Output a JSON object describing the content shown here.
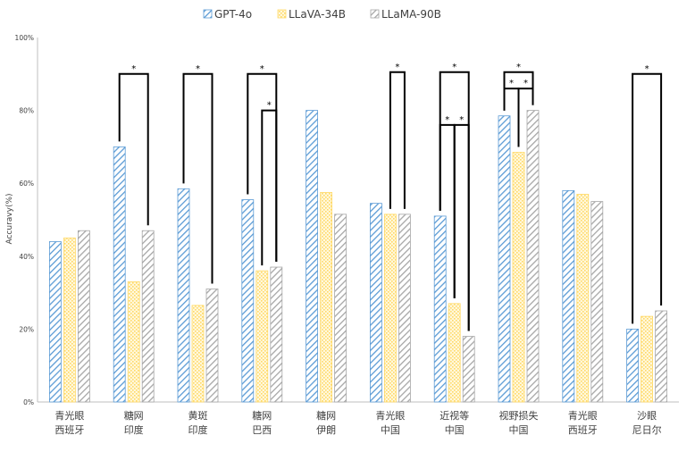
{
  "chart_data": {
    "type": "bar",
    "title": "",
    "xlabel": "",
    "ylabel": "Accuravy(%)",
    "ylim": [
      0,
      100
    ],
    "yticks": [
      "0%",
      "20%",
      "40%",
      "60%",
      "80%",
      "100%"
    ],
    "legend_position": "top",
    "grid": false,
    "categories": [
      [
        "青光眼",
        "西班牙"
      ],
      [
        "糖网",
        "印度"
      ],
      [
        "黄斑",
        "印度"
      ],
      [
        "糖网",
        "巴西"
      ],
      [
        "糖网",
        "伊朗"
      ],
      [
        "青光眼",
        "中国"
      ],
      [
        "近视等",
        "中国"
      ],
      [
        "视野损失",
        "中国"
      ],
      [
        "青光眼",
        "西班牙"
      ],
      [
        "沙眼",
        "尼日尔"
      ]
    ],
    "series": [
      {
        "name": "GPT-4o",
        "color": "#5b9bd5",
        "pattern": "diagonal-hatch",
        "values": [
          44,
          70,
          58.5,
          55.5,
          80,
          54.5,
          51,
          78.5,
          58,
          20
        ]
      },
      {
        "name": "LLaVA-34B",
        "color": "#ffd966",
        "pattern": "dots",
        "values": [
          45,
          33,
          26.5,
          36,
          57.5,
          51.5,
          27,
          68.5,
          57,
          23.5
        ]
      },
      {
        "name": "LLaMA-90B",
        "color": "#a6a6a6",
        "pattern": "diagonal-hatch",
        "values": [
          47,
          47,
          31,
          37,
          51.5,
          51.5,
          18,
          80,
          55,
          25
        ]
      }
    ],
    "significance": [
      {
        "category": 1,
        "from": 0,
        "to": 2,
        "level": 90,
        "label": "*"
      },
      {
        "category": 2,
        "from": 0,
        "to": 2,
        "level": 90,
        "label": "*"
      },
      {
        "category": 3,
        "from": 0,
        "to": 2,
        "level": 90,
        "label": "*"
      },
      {
        "category": 3,
        "from": 1,
        "to": 2,
        "level": 80,
        "label": "*"
      },
      {
        "category": 5,
        "from": 1,
        "to": 2,
        "level": 90.5,
        "label": "*"
      },
      {
        "category": 6,
        "from": 0,
        "to": 2,
        "level": 90.5,
        "label": "*"
      },
      {
        "category": 6,
        "from": 1,
        "to": 2,
        "level": 76,
        "label": "*"
      },
      {
        "category": 6,
        "from": 0,
        "to": 1,
        "level": 76,
        "label": "*"
      },
      {
        "category": 7,
        "from": 0,
        "to": 2,
        "level": 90.5,
        "label": "*"
      },
      {
        "category": 7,
        "from": 0,
        "to": 1,
        "level": 86,
        "label": "*"
      },
      {
        "category": 7,
        "from": 1,
        "to": 2,
        "level": 86,
        "label": "*"
      },
      {
        "category": 9,
        "from": 0,
        "to": 2,
        "level": 90,
        "label": "*"
      }
    ]
  }
}
